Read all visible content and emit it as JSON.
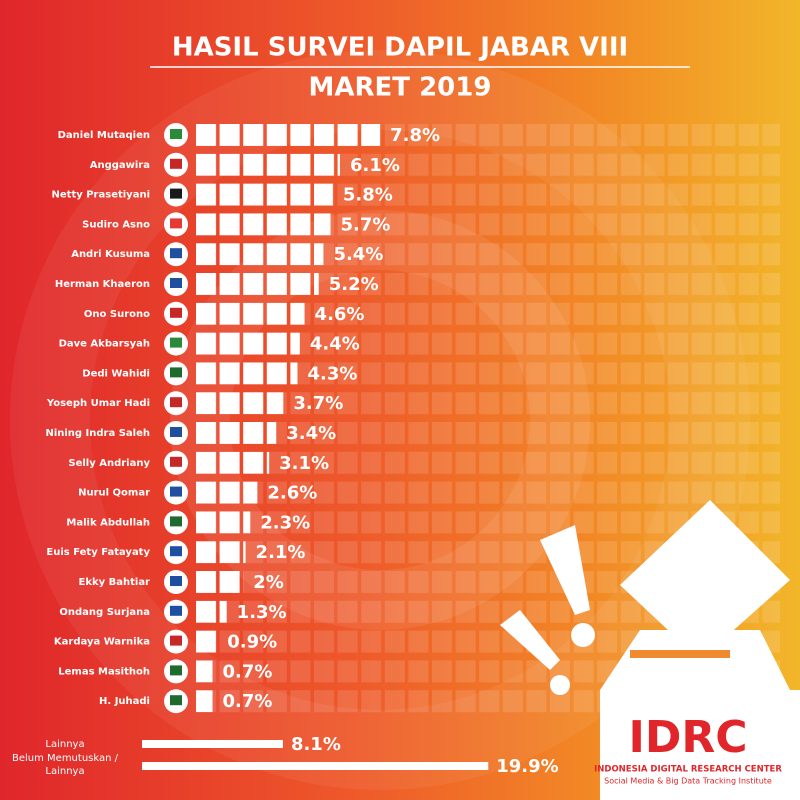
{
  "chart_data": {
    "type": "bar",
    "title": "HASIL SURVEI DAPIL JABAR VIII",
    "subtitle": "MARET 2019",
    "categories": [
      "Daniel Mutaqien",
      "Anggawira",
      "Netty Prasetiyani",
      "Sudiro Asno",
      "Andri Kusuma",
      "Herman Khaeron",
      "Ono Surono",
      "Dave Akbarsyah",
      "Dedi Wahidi",
      "Yoseph Umar Hadi",
      "Nining Indra Saleh",
      "Selly Andriany",
      "Nurul Qomar",
      "Malik Abdullah",
      "Euis Fety Fatayaty",
      "Ekky Bahtiar",
      "Ondang Surjana",
      "Kardaya Warnika",
      "Lemas Masithoh",
      "H. Juhadi"
    ],
    "values": [
      7.8,
      6.1,
      5.8,
      5.7,
      5.4,
      5.2,
      4.6,
      4.4,
      4.3,
      3.7,
      3.4,
      3.1,
      2.6,
      2.3,
      2.1,
      2,
      1.3,
      0.9,
      0.7,
      0.7
    ],
    "value_labels": [
      "7.8%",
      "6.1%",
      "5.8%",
      "5.7%",
      "5.4%",
      "5.2%",
      "4.6%",
      "4.4%",
      "4.3%",
      "3.7%",
      "3.4%",
      "3.1%",
      "2.6%",
      "2.3%",
      "2.1%",
      "2%",
      "1.3%",
      "0.9%",
      "0.7%",
      "0.7%"
    ],
    "color": "#ffffff",
    "others": {
      "categories": [
        "Lainnya",
        "Belum Memutuskan / Lainnya"
      ],
      "values": [
        8.1,
        19.9
      ],
      "value_labels": [
        "8.1%",
        "19.9%"
      ]
    }
  },
  "logo": {
    "name": "IDRC",
    "line1": "INDONESIA DIGITAL RESEARCH CENTER",
    "line2": "Social Media & Big Data Tracking Institute"
  }
}
